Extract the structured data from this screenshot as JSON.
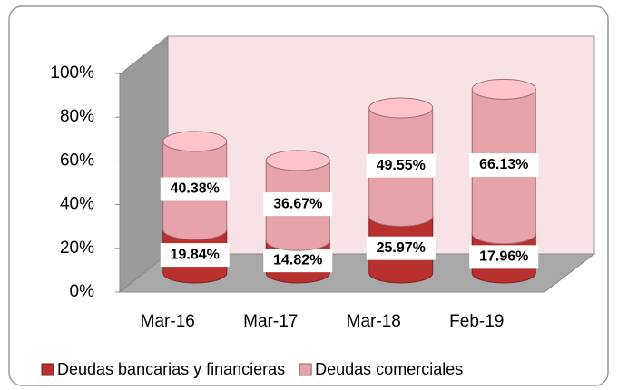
{
  "chart_data": {
    "type": "stacked-cylinder",
    "categories": [
      "Mar-16",
      "Mar-17",
      "Mar-18",
      "Feb-19"
    ],
    "series": [
      {
        "name": "Deudas bancarias y financieras",
        "color": "#b8312f",
        "values": [
          19.84,
          14.82,
          25.97,
          17.96
        ],
        "value_labels": [
          "19.84%",
          "14.82%",
          "25.97%",
          "17.96%"
        ]
      },
      {
        "name": "Deudas comerciales",
        "color": "#e8a2aa",
        "values": [
          40.38,
          36.67,
          49.55,
          66.13
        ],
        "value_labels": [
          "40.38%",
          "36.67%",
          "49.55%",
          "66.13%"
        ]
      }
    ],
    "ylim": [
      0,
      100
    ],
    "yticks": [
      {
        "value": 0,
        "label": "0%"
      },
      {
        "value": 20,
        "label": "20%"
      },
      {
        "value": 40,
        "label": "40%"
      },
      {
        "value": 60,
        "label": "60%"
      },
      {
        "value": 80,
        "label": "80%"
      },
      {
        "value": 100,
        "label": "100%"
      }
    ],
    "legend": "bottom"
  }
}
